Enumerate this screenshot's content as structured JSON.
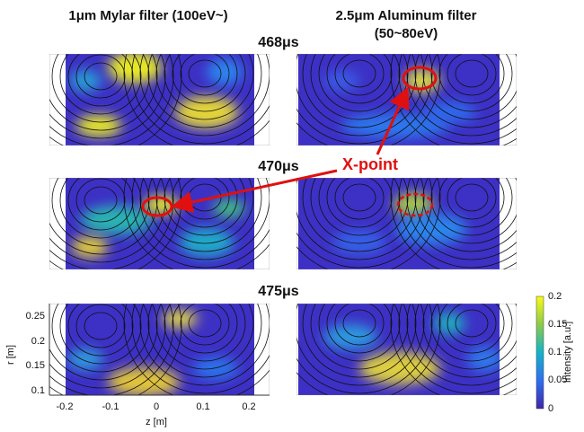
{
  "columns": [
    {
      "title": "1μm Mylar filter (100eV~)"
    },
    {
      "title": "2.5μm Aluminum filter",
      "subtitle": "(50~80eV)"
    }
  ],
  "rows": [
    {
      "time": "468μs"
    },
    {
      "time": "470μs"
    },
    {
      "time": "475μs"
    }
  ],
  "annotation": "X-point",
  "axes": {
    "r_label": "r [m]",
    "r_ticks": [
      "0.25",
      "0.2",
      "0.15",
      "0.1"
    ],
    "z_label": "z [m]",
    "z_ticks": [
      "-0.2",
      "-0.1",
      "0",
      "0.1",
      "0.2"
    ]
  },
  "colorbar": {
    "label": "Intensity [a.u.]",
    "ticks": [
      "0.2",
      "0.15",
      "0.1",
      "0.05",
      "0"
    ]
  }
}
